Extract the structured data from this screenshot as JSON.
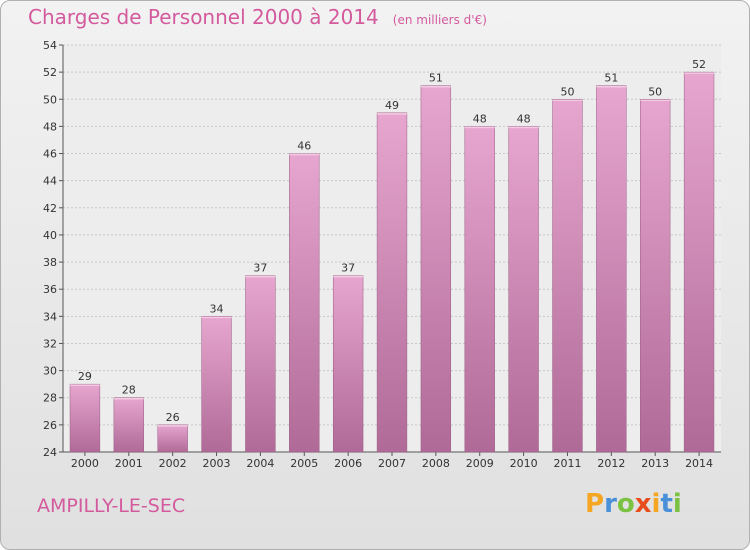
{
  "header": {
    "title": "Charges de Personnel 2000 à 2014",
    "unit": "(en milliers d'€)"
  },
  "footer": {
    "commune": "AMPILLY-LE-SEC",
    "brand_letters": [
      "P",
      "r",
      "o",
      "x",
      "i",
      "t",
      "i"
    ],
    "brand_colors": [
      "#f5a623",
      "#4a90d9",
      "#7cc242",
      "#e84e1b",
      "#f5a623",
      "#4a90d9",
      "#7cc242"
    ]
  },
  "colors": {
    "bar_top": "#e6a6cf",
    "bar_bottom": "#b06a97",
    "title": "#d45a9e"
  },
  "chart_data": {
    "type": "bar",
    "categories": [
      "2000",
      "2001",
      "2002",
      "2003",
      "2004",
      "2005",
      "2006",
      "2007",
      "2008",
      "2009",
      "2010",
      "2011",
      "2012",
      "2013",
      "2014"
    ],
    "values": [
      29,
      28,
      26,
      34,
      37,
      46,
      37,
      49,
      51,
      48,
      48,
      50,
      51,
      50,
      52
    ],
    "ylim": [
      24,
      54
    ],
    "yticks": [
      24,
      26,
      28,
      30,
      32,
      34,
      36,
      38,
      40,
      42,
      44,
      46,
      48,
      50,
      52,
      54
    ],
    "grid": true
  }
}
